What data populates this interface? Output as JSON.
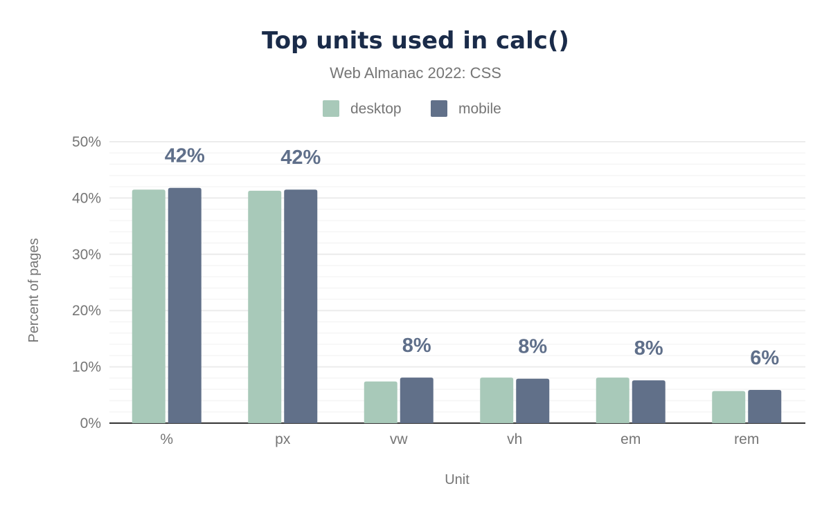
{
  "chart_data": {
    "type": "bar",
    "title": "Top units used in calc()",
    "subtitle": "Web Almanac 2022: CSS",
    "xlabel": "Unit",
    "ylabel": "Percent of pages",
    "categories": [
      "%",
      "px",
      "vw",
      "vh",
      "em",
      "rem"
    ],
    "series": [
      {
        "name": "desktop",
        "color": "#a8c9b9",
        "values": [
          41.5,
          41.3,
          7.4,
          8.1,
          8.1,
          5.7
        ]
      },
      {
        "name": "mobile",
        "color": "#617089",
        "values": [
          41.8,
          41.5,
          8.1,
          7.9,
          7.6,
          5.9
        ]
      }
    ],
    "data_labels": [
      "42%",
      "42%",
      "8%",
      "8%",
      "8%",
      "6%"
    ],
    "ylim": [
      0,
      50
    ],
    "yticks": [
      "0%",
      "10%",
      "20%",
      "30%",
      "40%",
      "50%"
    ],
    "grid": true,
    "legend_position": "top"
  }
}
